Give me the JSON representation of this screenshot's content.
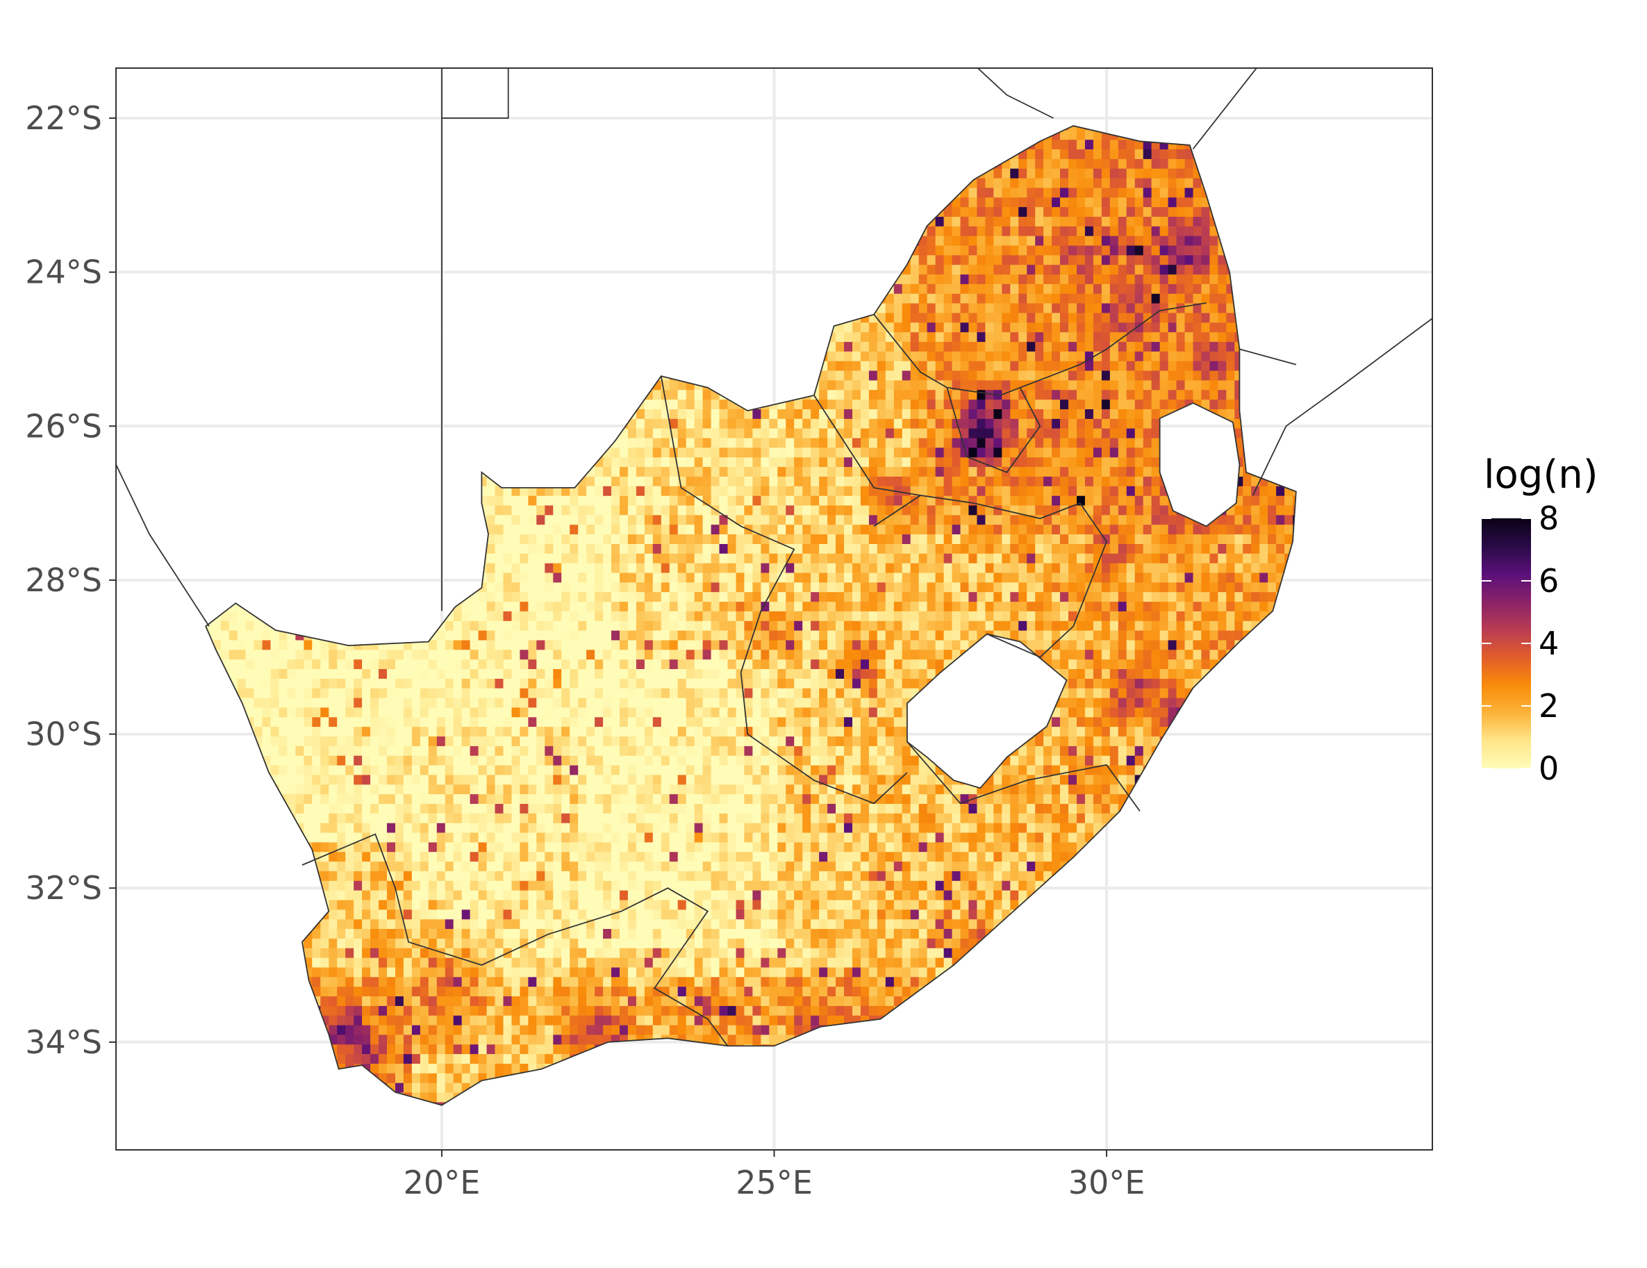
{
  "map": {
    "x_ticks": [
      "20°E",
      "25°E",
      "30°E"
    ],
    "y_ticks": [
      "22°S",
      "24°S",
      "26°S",
      "28°S",
      "30°S",
      "32°S",
      "34°S"
    ],
    "extent": {
      "lon": [
        15.1,
        34.9
      ],
      "lat": [
        -35.4,
        -21.35
      ]
    },
    "grid_lon": [
      20,
      25,
      30
    ],
    "grid_lat": [
      -22,
      -24,
      -26,
      -28,
      -30,
      -32,
      -34
    ],
    "colors": {
      "panel_border": "#333333",
      "grid": "#ebebeb",
      "boundary": "#333333"
    },
    "colormap": [
      "#fffcb8",
      "#ffe58a",
      "#fcb33a",
      "#f98c0a",
      "#e25d2b",
      "#b83c53",
      "#8a2268",
      "#5a107a",
      "#2a0a47",
      "#0a0318"
    ]
  },
  "legend": {
    "title": "log(n)",
    "ticks": [
      "8",
      "6",
      "4",
      "2",
      "0"
    ],
    "range": [
      0,
      8
    ]
  }
}
